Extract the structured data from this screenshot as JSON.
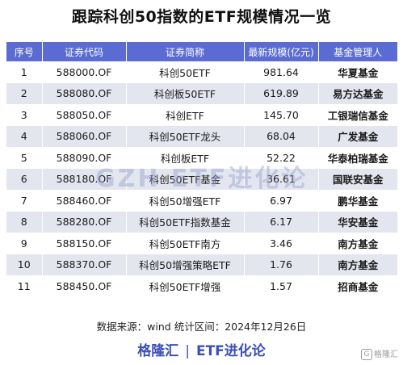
{
  "title": "跟踪科创50指数的ETF规模情况一览",
  "table": {
    "headers": [
      "序号",
      "证券代码",
      "证券简称",
      "最新规模(亿元)",
      "基金管理人"
    ],
    "rows": [
      {
        "no": "1",
        "code": "588000.OF",
        "name": "科创50ETF",
        "size": "981.64",
        "manager": "华夏基金"
      },
      {
        "no": "2",
        "code": "588080.OF",
        "name": "科创板50ETF",
        "size": "619.89",
        "manager": "易方达基金"
      },
      {
        "no": "3",
        "code": "588050.OF",
        "name": "科创ETF",
        "size": "145.70",
        "manager": "工银瑞信基金"
      },
      {
        "no": "4",
        "code": "588060.OF",
        "name": "科创50ETF龙头",
        "size": "68.04",
        "manager": "广发基金"
      },
      {
        "no": "5",
        "code": "588090.OF",
        "name": "科创板ETF",
        "size": "52.22",
        "manager": "华泰柏瑞基金"
      },
      {
        "no": "6",
        "code": "588180.OF",
        "name": "科创50ETF基金",
        "size": "36.61",
        "manager": "国联安基金"
      },
      {
        "no": "7",
        "code": "588460.OF",
        "name": "科创50增强ETF",
        "size": "6.97",
        "manager": "鹏华基金"
      },
      {
        "no": "8",
        "code": "588280.OF",
        "name": "科创50ETF指数基金",
        "size": "6.17",
        "manager": "华安基金"
      },
      {
        "no": "9",
        "code": "588150.OF",
        "name": "科创50ETF南方",
        "size": "3.46",
        "manager": "南方基金"
      },
      {
        "no": "10",
        "code": "588370.OF",
        "name": "科创50增强策略ETF",
        "size": "1.76",
        "manager": "南方基金"
      },
      {
        "no": "11",
        "code": "588450.OF",
        "name": "科创50ETF增强",
        "size": "1.57",
        "manager": "招商基金"
      }
    ]
  },
  "watermark": "GZH  ETF进化论",
  "source": "数据来源：wind 统计区间：2024年12月26日",
  "brand": {
    "left": "格隆汇",
    "separator": "|",
    "right": "ETF进化论"
  },
  "corner_logo": {
    "glyph": "G",
    "text": "格隆汇"
  },
  "colors": {
    "header_bg": "#5a6cd2",
    "stripe": "#e4e6ef",
    "brand": "#3a4fb8"
  }
}
